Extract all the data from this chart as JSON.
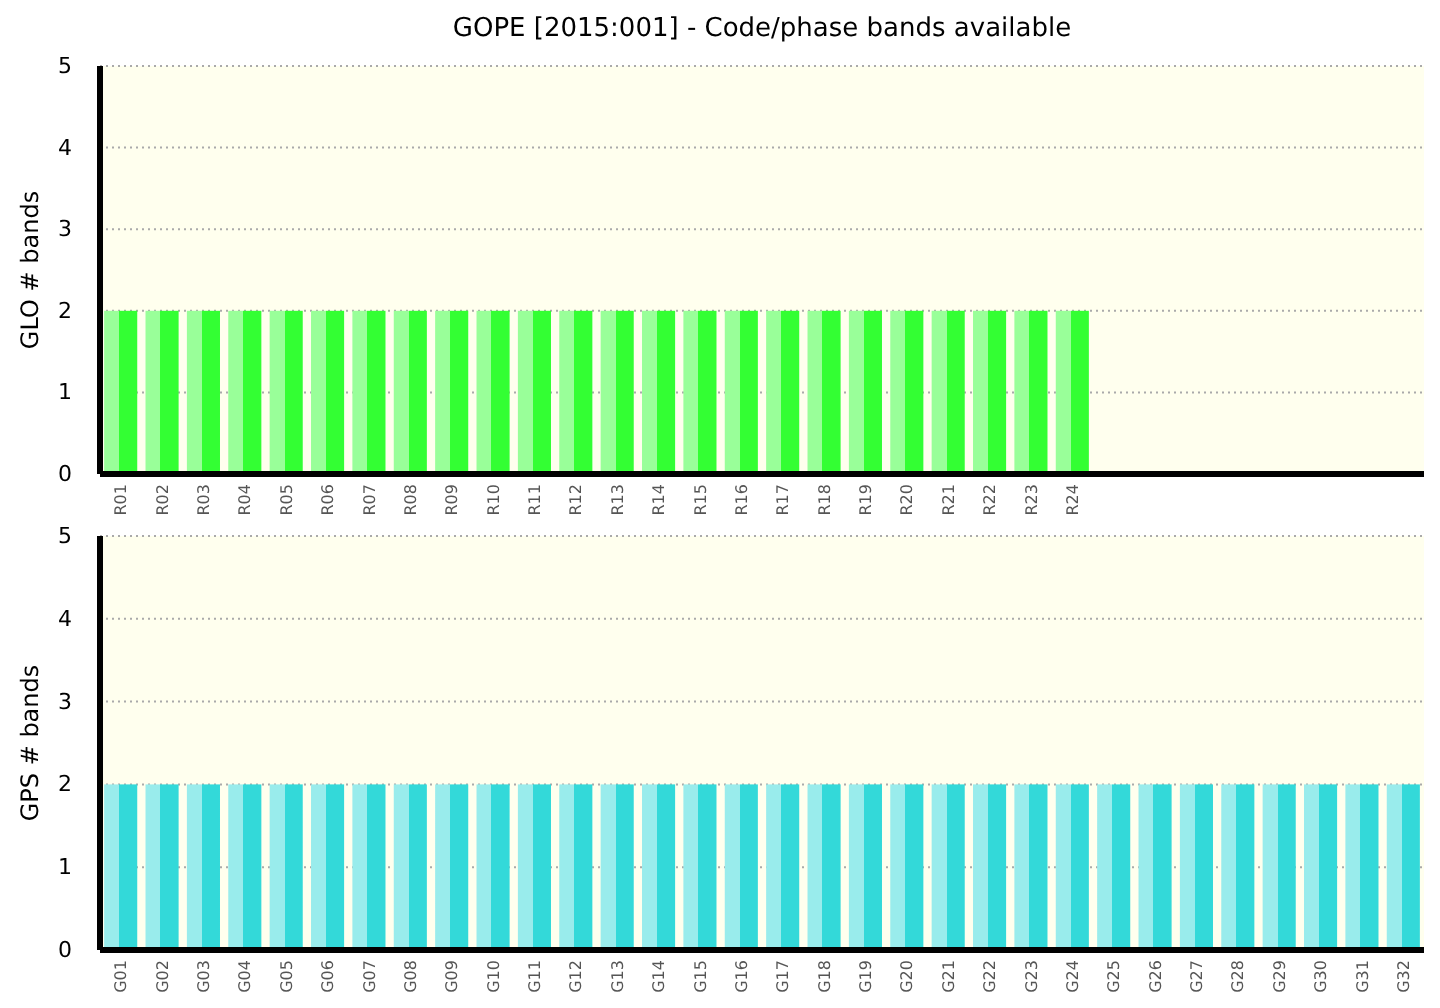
{
  "chart_data": [
    {
      "type": "bar",
      "title": "GOPE [2015:001] - Code/phase bands available",
      "ylabel": "GLO # bands",
      "categories": [
        "R01",
        "R02",
        "R03",
        "R04",
        "R05",
        "R06",
        "R07",
        "R08",
        "R09",
        "R10",
        "R11",
        "R12",
        "R13",
        "R14",
        "R15",
        "R16",
        "R17",
        "R18",
        "R19",
        "R20",
        "R21",
        "R22",
        "R23",
        "R24",
        null,
        null,
        null,
        null,
        null,
        null,
        null,
        null
      ],
      "values": [
        2,
        2,
        2,
        2,
        2,
        2,
        2,
        2,
        2,
        2,
        2,
        2,
        2,
        2,
        2,
        2,
        2,
        2,
        2,
        2,
        2,
        2,
        2,
        2,
        null,
        null,
        null,
        null,
        null,
        null,
        null,
        null
      ],
      "color": "#33ff33",
      "ylim": [
        0,
        5
      ],
      "yticks": [
        0,
        1,
        2,
        3,
        4,
        5
      ],
      "grid": "y"
    },
    {
      "type": "bar",
      "ylabel": "GPS # bands",
      "categories": [
        "G01",
        "G02",
        "G03",
        "G04",
        "G05",
        "G06",
        "G07",
        "G08",
        "G09",
        "G10",
        "G11",
        "G12",
        "G13",
        "G14",
        "G15",
        "G16",
        "G17",
        "G18",
        "G19",
        "G20",
        "G21",
        "G22",
        "G23",
        "G24",
        "G25",
        "G26",
        "G27",
        "G28",
        "G29",
        "G30",
        "G31",
        "G32"
      ],
      "values": [
        2,
        2,
        2,
        2,
        2,
        2,
        2,
        2,
        2,
        2,
        2,
        2,
        2,
        2,
        2,
        2,
        2,
        2,
        2,
        2,
        2,
        2,
        2,
        2,
        2,
        2,
        2,
        2,
        2,
        2,
        2,
        2
      ],
      "color": "#33d9d9",
      "ylim": [
        0,
        5
      ],
      "yticks": [
        0,
        1,
        2,
        3,
        4,
        5
      ],
      "grid": "y"
    }
  ]
}
